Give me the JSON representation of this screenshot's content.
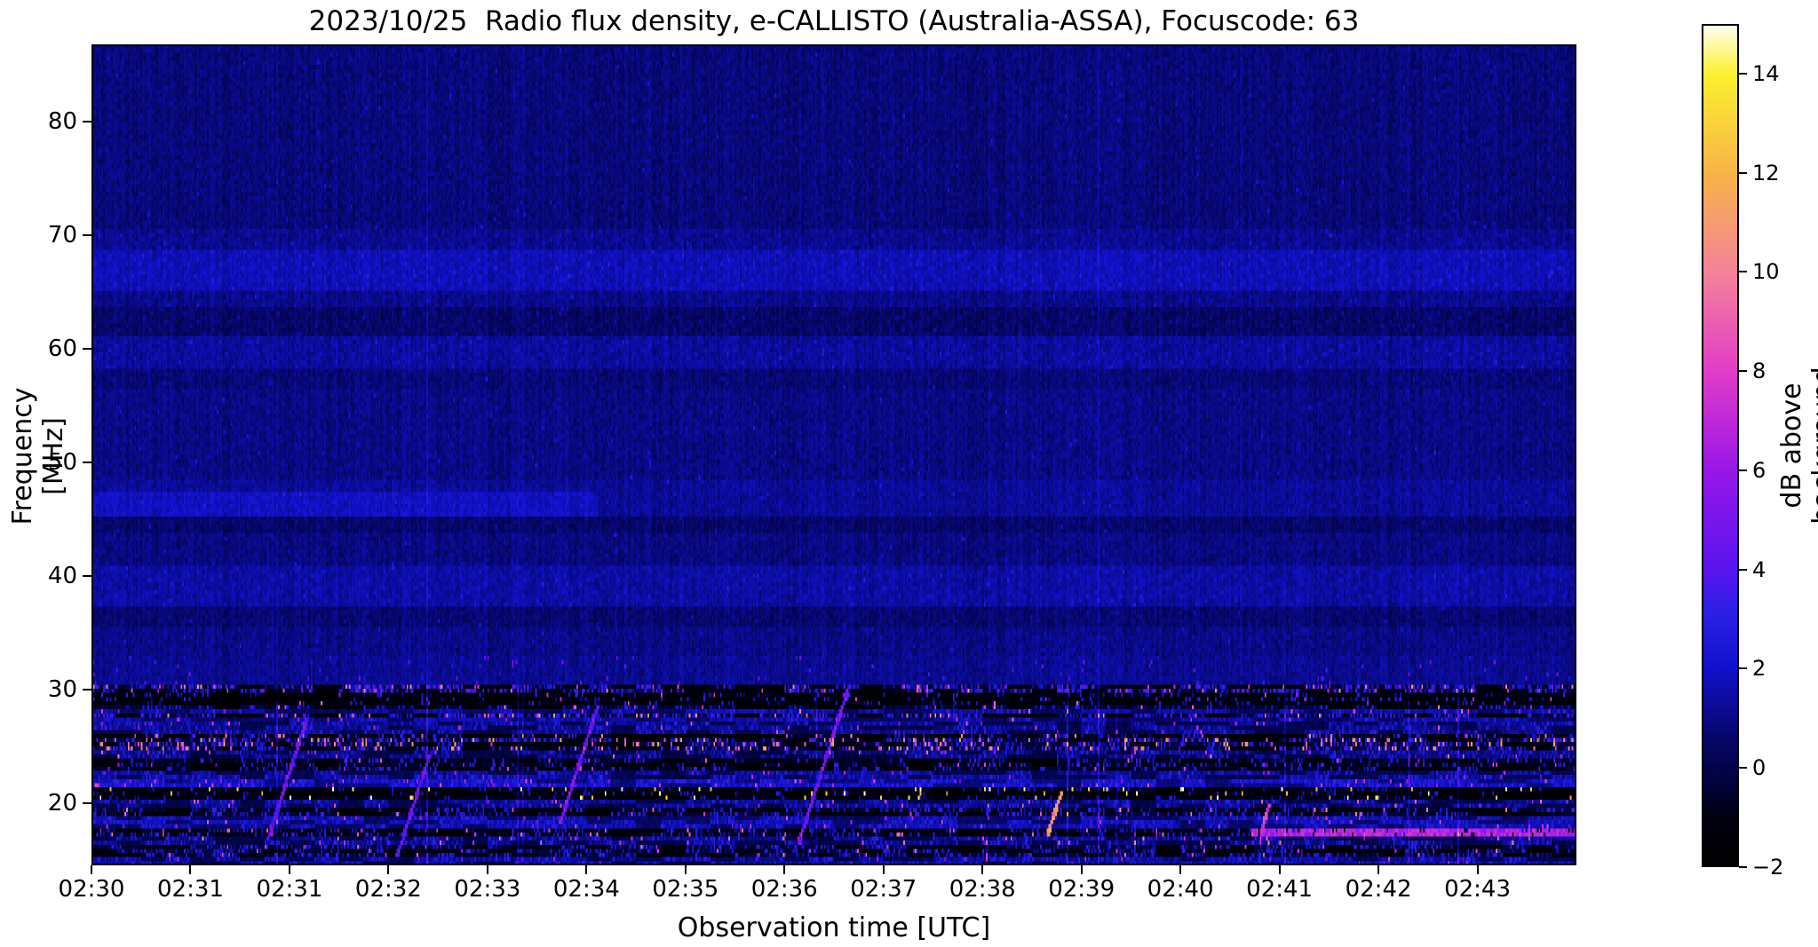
{
  "figure": {
    "title": "2023/10/25  Radio flux density, e-CALLISTO (Australia-ASSA), Focuscode: 63",
    "background_color": "#ffffff"
  },
  "chart_data": {
    "type": "heatmap",
    "title": "2023/10/25  Radio flux density, e-CALLISTO (Australia-ASSA), Focuscode: 63",
    "xlabel": "Observation time [UTC]",
    "ylabel": "Frequency [MHz]",
    "x_tick_labels": [
      "02:30",
      "02:31",
      "02:31",
      "02:32",
      "02:33",
      "02:34",
      "02:35",
      "02:36",
      "02:37",
      "02:38",
      "02:39",
      "02:40",
      "02:41",
      "02:42",
      "02:43"
    ],
    "y_tick_values": [
      80,
      70,
      60,
      50,
      40,
      30,
      20
    ],
    "y_tick_labels": [
      "80",
      "70",
      "60",
      "50",
      "40",
      "30",
      "20"
    ],
    "freq_range_mhz": [
      14.5,
      86.8
    ],
    "time_span_minutes": 15,
    "grid": "off",
    "colorbar": {
      "label": "dB above background",
      "value_range": [
        -2,
        15
      ],
      "tick_values": [
        14,
        12,
        10,
        8,
        6,
        4,
        2,
        0,
        -2
      ],
      "tick_labels": [
        "14",
        "12",
        "10",
        "8",
        "6",
        "4",
        "2",
        "0",
        "−2"
      ],
      "colormap_stops": [
        [
          0.0,
          "#000000"
        ],
        [
          0.06,
          "#010112"
        ],
        [
          0.1,
          "#02023f"
        ],
        [
          0.14,
          "#05055e"
        ],
        [
          0.2353,
          "#1111cc"
        ],
        [
          0.3,
          "#2a20e4"
        ],
        [
          0.3529,
          "#5a14ee"
        ],
        [
          0.4706,
          "#9816e8"
        ],
        [
          0.5882,
          "#e23cc8"
        ],
        [
          0.7059,
          "#f4829a"
        ],
        [
          0.8235,
          "#f8b348"
        ],
        [
          0.9412,
          "#fbf02e"
        ],
        [
          1.0,
          "#ffffee"
        ]
      ]
    },
    "content": {
      "description": "Solar radio spectrogram, mostly quiet dark-blue background (~0 to 1 dB) from 30 to 87 MHz with faint diagonal scan texture and horizontal receiver bands; dense broadband RFI speckle (blips up to 15 dB) below 30 MHz down to 14.5 MHz.",
      "background_level_db": 0.85,
      "bands": [
        {
          "f_low": 70.5,
          "f_high": 86.8,
          "level_db": 0.75,
          "texture": "diag-faint"
        },
        {
          "f_low": 68.8,
          "f_high": 70.5,
          "level_db": 1.05,
          "texture": "diag"
        },
        {
          "f_low": 65.3,
          "f_high": 68.8,
          "level_db": 1.65,
          "texture": "diag"
        },
        {
          "f_low": 63.8,
          "f_high": 65.3,
          "level_db": 1.0,
          "texture": "diag-faint"
        },
        {
          "f_low": 61.2,
          "f_high": 63.8,
          "level_db": 0.45,
          "texture": "diag"
        },
        {
          "f_low": 58.2,
          "f_high": 61.2,
          "level_db": 1.25,
          "texture": "diag"
        },
        {
          "f_low": 56.3,
          "f_high": 58.2,
          "level_db": 0.7,
          "texture": "diag-faint"
        },
        {
          "f_low": 48.5,
          "f_high": 56.3,
          "level_db": 0.9,
          "texture": "diag-faint"
        },
        {
          "f_low": 47.3,
          "f_high": 48.5,
          "level_db": 1.2,
          "texture": "none"
        },
        {
          "f_low": 45.2,
          "f_high": 47.3,
          "level_db": 1.85,
          "texture": "none",
          "bright_until_x": 0.34,
          "level_after_db": 1.2
        },
        {
          "f_low": 43.6,
          "f_high": 45.2,
          "level_db": 0.5,
          "texture": "diag-faint"
        },
        {
          "f_low": 40.8,
          "f_high": 43.6,
          "level_db": 0.85,
          "texture": "diag-faint"
        },
        {
          "f_low": 37.2,
          "f_high": 40.8,
          "level_db": 1.35,
          "texture": "diag"
        },
        {
          "f_low": 35.5,
          "f_high": 37.2,
          "level_db": 0.6,
          "texture": "diag-faint"
        },
        {
          "f_low": 32.8,
          "f_high": 35.5,
          "level_db": 0.95,
          "texture": "diag-faint"
        },
        {
          "f_low": 30.3,
          "f_high": 32.8,
          "level_db": 1.1,
          "texture": "dots"
        }
      ],
      "rfi_stripes": [
        {
          "f": 29.9,
          "hw": 0.35,
          "base_db": -0.8,
          "blip_p": 0.5,
          "blip_db": 3.5,
          "hot_p": 0.06,
          "hot_db": 9
        },
        {
          "f": 28.9,
          "hw": 0.55,
          "base_db": -1.5,
          "blip_p": 0.12,
          "blip_db": 2.5,
          "hot_p": 0.012,
          "hot_db": 8
        },
        {
          "f": 27.6,
          "hw": 0.3,
          "base_db": -0.5,
          "blip_p": 0.45,
          "blip_db": 3.0,
          "hot_p": 0.05,
          "hot_db": 10
        },
        {
          "f": 26.6,
          "hw": 0.5,
          "base_db": 0.8,
          "blip_p": 0.3,
          "blip_db": 2.2,
          "hot_p": 0.02,
          "hot_db": 7
        },
        {
          "f": 25.8,
          "hw": 0.3,
          "base_db": -1.2,
          "blip_p": 0.25,
          "blip_db": 2.8,
          "hot_p": 0.04,
          "hot_db": 9
        },
        {
          "f": 25.0,
          "hw": 0.45,
          "base_db": -0.6,
          "blip_p": 0.35,
          "blip_db": 3.0,
          "hot_p": 0.1,
          "hot_db": 10
        },
        {
          "f": 24.2,
          "hw": 0.4,
          "base_db": 0.6,
          "blip_p": 0.3,
          "blip_db": 2.0,
          "hot_p": 0.02,
          "hot_db": 8
        },
        {
          "f": 23.3,
          "hw": 0.5,
          "base_db": -1.0,
          "blip_p": 0.2,
          "blip_db": 2.4,
          "hot_p": 0.015,
          "hot_db": 7
        },
        {
          "f": 22.4,
          "hw": 0.45,
          "base_db": 0.9,
          "blip_p": 0.35,
          "blip_db": 2.2,
          "hot_p": 0.02,
          "hot_db": 6
        },
        {
          "f": 21.6,
          "hw": 0.35,
          "base_db": 1.6,
          "blip_p": 0.5,
          "blip_db": 2.5,
          "hot_p": 0.05,
          "hot_db": 7
        },
        {
          "f": 20.7,
          "hw": 0.45,
          "base_db": -1.4,
          "blip_p": 0.1,
          "blip_db": 2.0,
          "hot_p": 0.045,
          "hot_db": 14
        },
        {
          "f": 19.9,
          "hw": 0.4,
          "base_db": 0.8,
          "blip_p": 0.3,
          "blip_db": 2.2,
          "hot_p": 0.02,
          "hot_db": 8
        },
        {
          "f": 19.0,
          "hw": 0.5,
          "base_db": -0.9,
          "blip_p": 0.25,
          "blip_db": 2.5,
          "hot_p": 0.02,
          "hot_db": 9
        },
        {
          "f": 18.1,
          "hw": 0.4,
          "base_db": 1.3,
          "blip_p": 0.45,
          "blip_db": 2.2,
          "hot_p": 0.02,
          "hot_db": 7
        },
        {
          "f": 17.2,
          "hw": 0.35,
          "base_db": -1.2,
          "blip_p": 0.2,
          "blip_db": 2.2,
          "hot_p": 0.03,
          "hot_db": 8,
          "line_from_x": 0.78,
          "line_db": 6.5
        },
        {
          "f": 16.4,
          "hw": 0.4,
          "base_db": 0.7,
          "blip_p": 0.35,
          "blip_db": 2.4,
          "hot_p": 0.03,
          "hot_db": 9
        },
        {
          "f": 15.5,
          "hw": 0.6,
          "base_db": -0.7,
          "blip_p": 0.3,
          "blip_db": 2.2,
          "hot_p": 0.02,
          "hot_db": 8
        },
        {
          "f": 14.5,
          "hw": 0.55,
          "base_db": 0.9,
          "blip_p": 0.4,
          "blip_db": 2.2,
          "hot_p": 0.02,
          "hot_db": 6
        }
      ],
      "diagonal_sweeps": [
        {
          "x_frac": 0.118,
          "f_low": 16.5,
          "f_high": 27.5,
          "peak_db": 3.2
        },
        {
          "x_frac": 0.205,
          "f_low": 15.0,
          "f_high": 24.0,
          "peak_db": 3.0
        },
        {
          "x_frac": 0.315,
          "f_low": 18.0,
          "f_high": 28.5,
          "peak_db": 3.5
        },
        {
          "x_frac": 0.475,
          "f_low": 16.0,
          "f_high": 30.0,
          "peak_db": 3.2
        },
        {
          "x_frac": 0.643,
          "f_low": 16.8,
          "f_high": 20.8,
          "peak_db": 9.0
        },
        {
          "x_frac": 0.787,
          "f_low": 17.3,
          "f_high": 19.8,
          "peak_db": 6.0
        }
      ]
    }
  }
}
